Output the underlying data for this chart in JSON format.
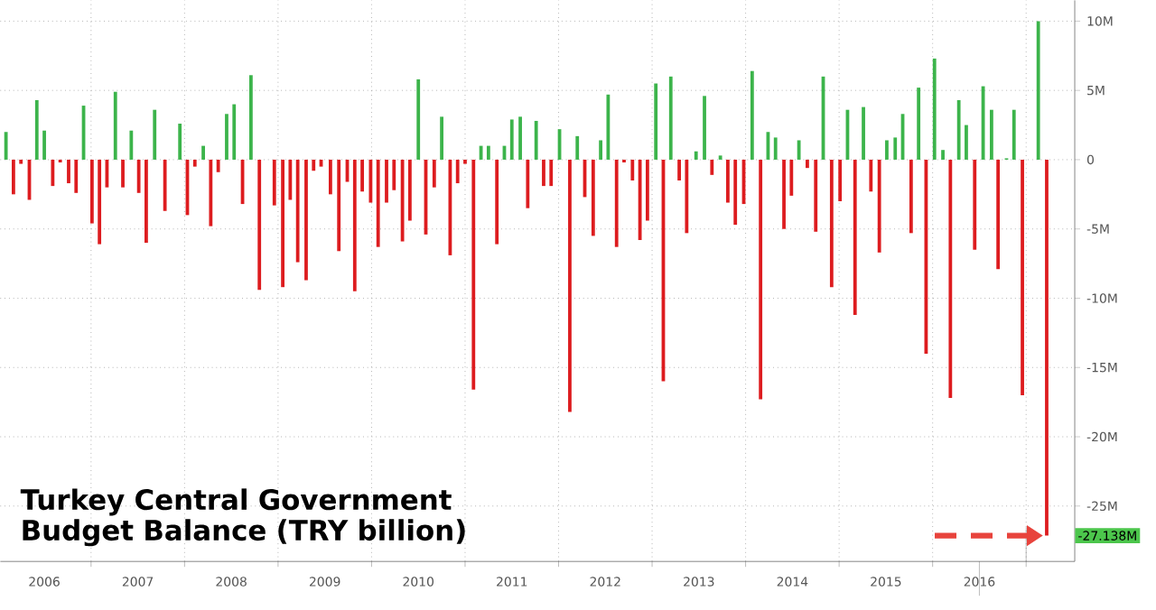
{
  "chart_data": {
    "type": "bar",
    "title": "Turkey Central Government Budget Balance (TRY billion)",
    "xlim": [
      2006.03,
      2017.52
    ],
    "xticks": [
      {
        "value": 2007,
        "label": null
      },
      {
        "value": 2008,
        "label": null
      },
      {
        "value": 2009,
        "label": null
      },
      {
        "value": 2010,
        "label": null
      },
      {
        "value": 2011,
        "label": null
      },
      {
        "value": 2012,
        "label": null
      },
      {
        "value": 2013,
        "label": null
      },
      {
        "value": 2014,
        "label": null
      },
      {
        "value": 2015,
        "label": null
      },
      {
        "value": 2016,
        "label": null
      },
      {
        "value": 2017,
        "label": null
      },
      {
        "value": 2006.5,
        "label": "2006"
      },
      {
        "value": 2007.5,
        "label": "2007"
      },
      {
        "value": 2008.5,
        "label": "2008"
      },
      {
        "value": 2009.5,
        "label": "2009"
      },
      {
        "value": 2010.5,
        "label": "2010"
      },
      {
        "value": 2011.5,
        "label": "2011"
      },
      {
        "value": 2012.5,
        "label": "2012"
      },
      {
        "value": 2013.5,
        "label": "2013"
      },
      {
        "value": 2014.5,
        "label": "2014"
      },
      {
        "value": 2015.5,
        "label": "2015"
      },
      {
        "value": 2016.5,
        "label": "2016"
      }
    ],
    "ylim": [
      -29,
      11.5
    ],
    "yticks": [
      {
        "value": -25,
        "label": "-25M"
      },
      {
        "value": -20,
        "label": "-20M"
      },
      {
        "value": -15,
        "label": "-15M"
      },
      {
        "value": -10,
        "label": "-10M"
      },
      {
        "value": -5,
        "label": "-5M"
      },
      0,
      {
        "value": 5,
        "label": "5M"
      },
      {
        "value": 10,
        "label": "10M"
      }
    ],
    "grid": true,
    "series": [
      {
        "color": "#3cb44b",
        "x": [
          2006.09,
          2006.42,
          2006.5,
          2006.92,
          2007.26,
          2007.43,
          2007.68,
          2007.95,
          2008.2,
          2008.45,
          2008.53,
          2008.71,
          2010.5,
          2010.75,
          2011.17,
          2011.25,
          2011.42,
          2011.5,
          2011.59,
          2011.76,
          2012.01,
          2012.2,
          2012.45,
          2012.53,
          2013.04,
          2013.2,
          2013.47,
          2013.56,
          2013.73,
          2014.07,
          2014.24,
          2014.32,
          2014.57,
          2014.83,
          2015.09,
          2015.26,
          2015.51,
          2015.6,
          2015.68,
          2015.85,
          2016.02,
          2016.11,
          2016.28,
          2016.36,
          2016.54,
          2016.63,
          2016.79,
          2016.87,
          2017.13
        ],
        "values": [
          2.0,
          4.3,
          2.1,
          3.9,
          4.9,
          2.1,
          3.6,
          2.6,
          1.0,
          3.3,
          4.0,
          6.1,
          5.8,
          3.1,
          1.0,
          1.0,
          1.0,
          2.9,
          3.1,
          2.8,
          2.2,
          1.7,
          1.4,
          4.7,
          5.5,
          6.0,
          0.6,
          4.6,
          0.3,
          6.4,
          2.0,
          1.6,
          1.4,
          6.0,
          3.6,
          3.8,
          1.4,
          1.6,
          3.3,
          5.2,
          7.3,
          0.7,
          4.3,
          2.5,
          5.3,
          3.6,
          0.1,
          3.6,
          10.0
        ]
      },
      {
        "color": "#dd1c1f",
        "x": [
          2006.17,
          2006.25,
          2006.34,
          2006.59,
          2006.67,
          2006.76,
          2006.84,
          2007.01,
          2007.09,
          2007.17,
          2007.34,
          2007.51,
          2007.59,
          2007.79,
          2008.03,
          2008.11,
          2008.28,
          2008.36,
          2008.62,
          2008.8,
          2008.96,
          2009.05,
          2009.13,
          2009.21,
          2009.3,
          2009.38,
          2009.46,
          2009.56,
          2009.65,
          2009.74,
          2009.82,
          2009.9,
          2009.99,
          2010.07,
          2010.16,
          2010.24,
          2010.33,
          2010.41,
          2010.58,
          2010.67,
          2010.84,
          2010.92,
          2011.0,
          2011.09,
          2011.34,
          2011.67,
          2011.84,
          2011.92,
          2012.12,
          2012.28,
          2012.37,
          2012.62,
          2012.7,
          2012.79,
          2012.87,
          2012.95,
          2013.12,
          2013.29,
          2013.37,
          2013.64,
          2013.81,
          2013.89,
          2013.98,
          2014.16,
          2014.41,
          2014.49,
          2014.66,
          2014.75,
          2014.92,
          2015.01,
          2015.17,
          2015.34,
          2015.43,
          2015.77,
          2015.93,
          2016.19,
          2016.45,
          2016.7,
          2016.96,
          2017.22
        ],
        "values": [
          -2.5,
          -0.3,
          -2.9,
          -1.9,
          -0.2,
          -1.7,
          -2.4,
          -4.6,
          -6.1,
          -2.0,
          -2.0,
          -2.4,
          -6.0,
          -3.7,
          -4.0,
          -0.5,
          -4.8,
          -0.9,
          -3.2,
          -9.4,
          -3.3,
          -9.2,
          -2.9,
          -7.4,
          -8.7,
          -0.8,
          -0.5,
          -2.5,
          -6.6,
          -1.6,
          -9.5,
          -2.3,
          -3.1,
          -6.3,
          -3.1,
          -2.2,
          -5.9,
          -4.4,
          -5.4,
          -2.0,
          -6.9,
          -1.7,
          -0.3,
          -16.6,
          -6.1,
          -3.5,
          -1.9,
          -1.9,
          -18.2,
          -2.7,
          -5.5,
          -6.3,
          -0.2,
          -1.5,
          -5.8,
          -4.4,
          -16.0,
          -1.5,
          -5.3,
          -1.1,
          -3.1,
          -4.7,
          -3.2,
          -17.3,
          -5.0,
          -2.6,
          -0.6,
          -5.2,
          -9.2,
          -3.0,
          -11.2,
          -2.3,
          -6.7,
          -5.3,
          -14.0,
          -17.2,
          -6.5,
          -7.9,
          -17.0,
          -27.138
        ]
      }
    ],
    "annotations": [
      {
        "text": "-27.138M",
        "x": 2017.22,
        "y": -27.138
      }
    ]
  }
}
